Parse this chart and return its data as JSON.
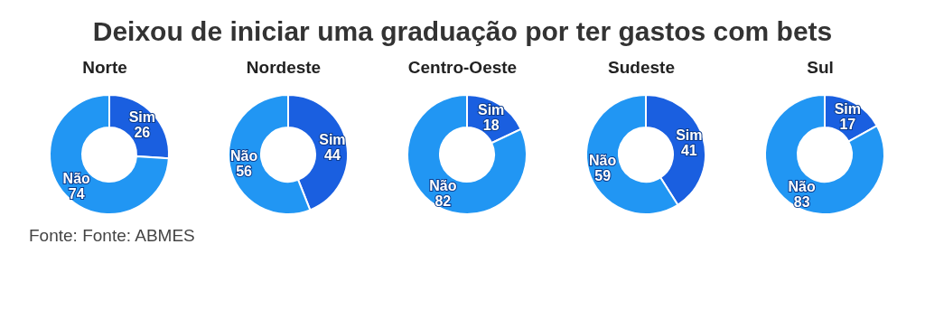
{
  "chart_data": [
    {
      "type": "other",
      "title": "Deixou de iniciar uma graduação por ter gastos com bets"
    },
    {
      "type": "donut",
      "title": "Norte",
      "categories": [
        "Sim",
        "Não"
      ],
      "values": [
        26,
        74
      ],
      "colors": [
        "#1a5fe0",
        "#2196f3"
      ],
      "data_labels": true
    },
    {
      "type": "donut",
      "title": "Nordeste",
      "categories": [
        "Sim",
        "Não"
      ],
      "values": [
        44,
        56
      ],
      "colors": [
        "#1a5fe0",
        "#2196f3"
      ],
      "data_labels": true
    },
    {
      "type": "donut",
      "title": "Centro-Oeste",
      "categories": [
        "Sim",
        "Não"
      ],
      "values": [
        18,
        82
      ],
      "colors": [
        "#1a5fe0",
        "#2196f3"
      ],
      "data_labels": true
    },
    {
      "type": "donut",
      "title": "Sudeste",
      "categories": [
        "Sim",
        "Não"
      ],
      "values": [
        41,
        59
      ],
      "colors": [
        "#1a5fe0",
        "#2196f3"
      ],
      "data_labels": true
    },
    {
      "type": "donut",
      "title": "Sul",
      "categories": [
        "Sim",
        "Não"
      ],
      "values": [
        17,
        83
      ],
      "colors": [
        "#1a5fe0",
        "#2196f3"
      ],
      "data_labels": true
    },
    {
      "type": "other",
      "annotations": [
        "Fonte: Fonte: ABMES"
      ]
    }
  ]
}
